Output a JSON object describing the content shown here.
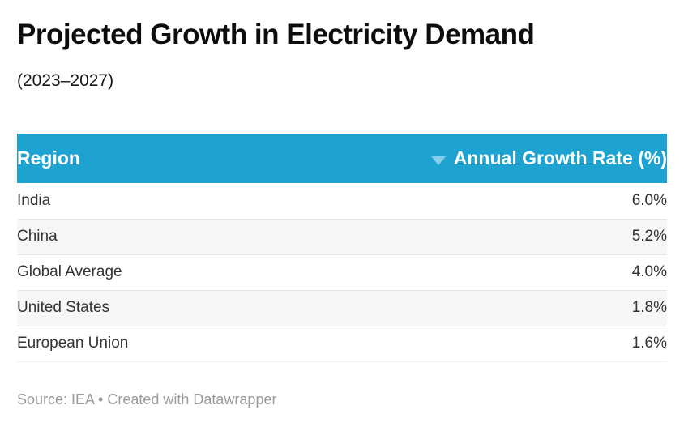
{
  "chart_data": {
    "type": "table",
    "title": "Projected Growth in Electricity Demand",
    "subtitle": "(2023–2027)",
    "columns": [
      "Region",
      "Annual Growth Rate (%)"
    ],
    "rows": [
      [
        "India",
        "6.0%"
      ],
      [
        "China",
        "5.2%"
      ],
      [
        "Global Average",
        "4.0%"
      ],
      [
        "United States",
        "1.8%"
      ],
      [
        "European Union",
        "1.6%"
      ]
    ],
    "values_numeric": [
      6.0,
      5.2,
      4.0,
      1.8,
      1.6
    ],
    "sort": {
      "column": "Annual Growth Rate (%)",
      "direction": "desc"
    },
    "zebra_striping": true,
    "legend_position": "none"
  },
  "header": {
    "sort_icon": "sort-desc-triangle"
  },
  "footer": {
    "text": "Source: IEA • Created with Datawrapper"
  },
  "colors": {
    "header_bg": "#1EA2CF",
    "header_text": "#ffffff",
    "sort_icon": "#85CEE7",
    "zebra_row_bg": "#f6f6f6",
    "row_border": "#e6e6e6",
    "body_text": "#333333",
    "title_text": "#0d0d0d",
    "footer_text": "#9a9a9a"
  }
}
